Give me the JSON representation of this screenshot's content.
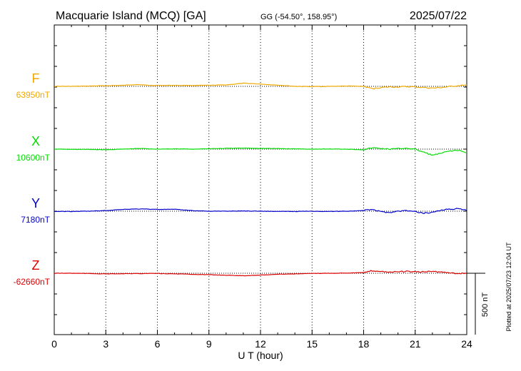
{
  "header": {
    "station": "Macquarie Island (MCQ)  [GA]",
    "coords": "GG (-54.50°, 158.95°)",
    "date": "2025/07/22"
  },
  "footer": {
    "plotted": "Plotted at 2025/07/23 12:04 UT"
  },
  "colors": {
    "F": "#f0a800",
    "X": "#00dd00",
    "Y": "#0000cc",
    "Z": "#dd0000"
  },
  "chart_data": {
    "type": "line",
    "xlabel": "U T (hour)",
    "xlim": [
      0,
      24
    ],
    "xticks": [
      "0",
      "3",
      "6",
      "9",
      "12",
      "15",
      "18",
      "21",
      "24"
    ],
    "grid": "dotted vertical lines every 3 hours",
    "scale_bar_label": "500 nT",
    "scale_bar_nT": 500,
    "series": [
      {
        "name": "F",
        "baseline_label": "63950nT",
        "baseline": 63950,
        "x": [
          0,
          1,
          2,
          3,
          4,
          4.8,
          5.5,
          6,
          7,
          8,
          9,
          10,
          10.5,
          11,
          11.5,
          12,
          13,
          14,
          15,
          16,
          17,
          18,
          18.5,
          19,
          19.5,
          20,
          20.5,
          21,
          21.5,
          22,
          22.5,
          23,
          23.5,
          24
        ],
        "values": [
          63950,
          63950,
          63952,
          63955,
          63958,
          63965,
          63958,
          63957,
          63958,
          63957,
          63958,
          63962,
          63968,
          63975,
          63972,
          63968,
          63960,
          63950,
          63948,
          63950,
          63952,
          63950,
          63930,
          63940,
          63945,
          63945,
          63948,
          63945,
          63940,
          63935,
          63940,
          63948,
          63955,
          63960
        ]
      },
      {
        "name": "X",
        "baseline_label": "10600nT",
        "baseline": 10600,
        "x": [
          0,
          1,
          2,
          3,
          4,
          5,
          6,
          7,
          8,
          9,
          10,
          11,
          12,
          13,
          14,
          15,
          16,
          17,
          18,
          18.5,
          19,
          19.5,
          20,
          20.5,
          21,
          21.5,
          22,
          22.5,
          23,
          23.5,
          24
        ],
        "values": [
          10600,
          10598,
          10598,
          10595,
          10600,
          10605,
          10600,
          10602,
          10600,
          10603,
          10606,
          10608,
          10606,
          10604,
          10602,
          10600,
          10601,
          10600,
          10595,
          10610,
          10605,
          10600,
          10603,
          10608,
          10598,
          10575,
          10550,
          10565,
          10585,
          10590,
          10570
        ]
      },
      {
        "name": "Y",
        "baseline_label": "7180nT",
        "baseline": 7180,
        "x": [
          0,
          1,
          2,
          3,
          4,
          5,
          6,
          7,
          8,
          9,
          10,
          11,
          12,
          13,
          14,
          15,
          16,
          17,
          18,
          18.5,
          19,
          19.5,
          20,
          20.5,
          21,
          21.5,
          22,
          22.5,
          23,
          23.5,
          24
        ],
        "values": [
          7178,
          7178,
          7180,
          7185,
          7195,
          7198,
          7195,
          7195,
          7185,
          7180,
          7180,
          7182,
          7180,
          7178,
          7178,
          7180,
          7178,
          7180,
          7185,
          7195,
          7175,
          7170,
          7180,
          7185,
          7175,
          7165,
          7170,
          7190,
          7195,
          7200,
          7185
        ]
      },
      {
        "name": "Z",
        "baseline_label": "-62660nT",
        "baseline": -62660,
        "x": [
          0,
          1,
          2,
          3,
          4,
          5,
          6,
          7,
          8,
          9,
          10,
          11,
          12,
          13,
          14,
          15,
          16,
          17,
          18,
          18.5,
          19,
          19.5,
          20,
          20.5,
          21,
          21.5,
          22,
          22.5,
          23,
          23.5,
          24
        ],
        "values": [
          -62660,
          -62660,
          -62662,
          -62665,
          -62664,
          -62662,
          -62662,
          -62665,
          -62668,
          -62672,
          -62676,
          -62680,
          -62675,
          -62668,
          -62665,
          -62662,
          -62660,
          -62658,
          -62655,
          -62640,
          -62645,
          -62650,
          -62648,
          -62645,
          -62650,
          -62648,
          -62645,
          -62650,
          -62655,
          -62662,
          -62660
        ]
      }
    ]
  }
}
